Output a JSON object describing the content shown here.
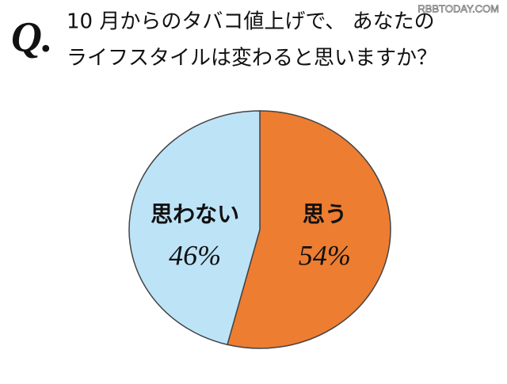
{
  "chart_data": {
    "type": "pie",
    "question_mark": "Q.",
    "watermark": "RBBTODAY.COM",
    "title": [
      "10 月からのタバコ値上げで、 あなたの",
      "ライフスタイルは変わると思いますか？"
    ],
    "categories": [
      "思う",
      "思わない"
    ],
    "values": [
      54,
      46
    ],
    "value_labels": [
      "54%",
      "46%"
    ],
    "colors": [
      "#ED7D31",
      "#BDE3F7"
    ]
  }
}
